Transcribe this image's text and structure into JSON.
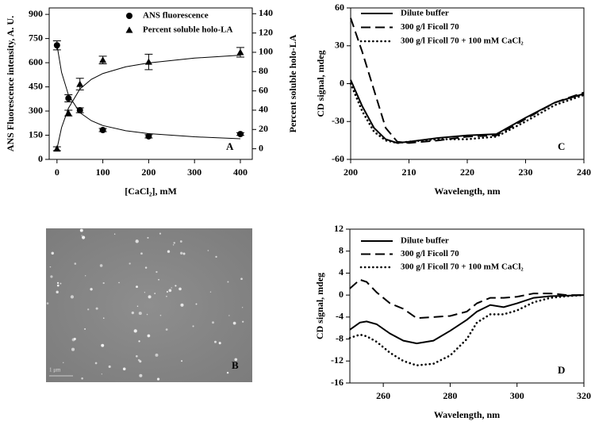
{
  "chart_data": [
    {
      "type": "scatter",
      "annotation": "A",
      "x_label": "[CaCl₂], mM",
      "y_label": "ANS Fluorescence intensity, A. U.",
      "y2_label": "Percent soluble holo-LA",
      "x": [
        0,
        25,
        50,
        100,
        200,
        400
      ],
      "series": [
        {
          "name": "ANS fluorescence",
          "marker": "circle",
          "color": "#000000",
          "axis": "y",
          "values": [
            708,
            379,
            305,
            182,
            143,
            157
          ],
          "errors": [
            28,
            22,
            15,
            10,
            10,
            8
          ]
        },
        {
          "name": "Percent soluble holo-LA",
          "marker": "triangle",
          "color": "#000000",
          "axis": "y2",
          "values": [
            0,
            37,
            67,
            92,
            90,
            100
          ],
          "errors": [
            2,
            3,
            6,
            4,
            8,
            5
          ]
        }
      ],
      "fits": [
        {
          "axis": "y",
          "x": [
            0,
            10,
            25,
            50,
            75,
            100,
            150,
            200,
            300,
            400
          ],
          "values": [
            710,
            540,
            400,
            290,
            240,
            210,
            178,
            160,
            140,
            128
          ]
        },
        {
          "axis": "y2",
          "x": [
            0,
            10,
            25,
            50,
            75,
            100,
            150,
            200,
            300,
            400
          ],
          "values": [
            0,
            22,
            42,
            62,
            72,
            78,
            85,
            89,
            94,
            97
          ]
        }
      ],
      "xlim": [
        -17,
        426
      ],
      "xticks": [
        0,
        100,
        200,
        300,
        400
      ],
      "ylim": [
        0,
        940
      ],
      "yticks": [
        0,
        150,
        300,
        450,
        600,
        750,
        900
      ],
      "y2lim": [
        -11,
        146
      ],
      "y2ticks": [
        0,
        20,
        40,
        60,
        80,
        100,
        120,
        140
      ]
    },
    {
      "type": "line",
      "annotation": "C",
      "x_label": "Wavelength, nm",
      "y_label": "CD signal, mdeg",
      "x": [
        200,
        202,
        204,
        206,
        208,
        210,
        215,
        220,
        225,
        230,
        235,
        240
      ],
      "series": [
        {
          "name": "Dilute buffer",
          "color": "#000000",
          "dash": "solid",
          "values": [
            3,
            -18,
            -35,
            -44,
            -47,
            -46,
            -43,
            -41,
            -40,
            -27,
            -15,
            -8
          ]
        },
        {
          "name": "300 g/l Ficoll 70",
          "color": "#000000",
          "dash": "dashed",
          "values": [
            52,
            25,
            -5,
            -35,
            -46,
            -47,
            -45,
            -42,
            -41,
            -28,
            -15,
            -7
          ]
        },
        {
          "name": "300 g/l Ficoll 70 + 100 mM CaCl₂",
          "color": "#000000",
          "dash": "dotted",
          "values": [
            0,
            -22,
            -38,
            -45,
            -47,
            -46,
            -44,
            -44,
            -42,
            -30,
            -17,
            -9
          ]
        }
      ],
      "xlim": [
        200,
        240
      ],
      "xticks": [
        200,
        210,
        220,
        230,
        240
      ],
      "ylim": [
        -60,
        60
      ],
      "yticks": [
        -60,
        -30,
        0,
        30,
        60
      ]
    },
    {
      "type": "line",
      "annotation": "D",
      "x_label": "Wavelength, nm",
      "y_label": "CD signal, mdeg",
      "x": [
        250,
        253,
        255,
        258,
        262,
        266,
        270,
        275,
        280,
        285,
        288,
        292,
        296,
        300,
        305,
        310,
        315,
        320
      ],
      "series": [
        {
          "name": "Dilute buffer",
          "color": "#000000",
          "dash": "solid",
          "values": [
            -6.3,
            -5,
            -4.8,
            -5.3,
            -7,
            -8.3,
            -8.8,
            -8.3,
            -6.5,
            -4.5,
            -3,
            -1.8,
            -2.2,
            -1.5,
            -0.5,
            -0.2,
            -0.1,
            0
          ]
        },
        {
          "name": "300 g/l Ficoll 70",
          "color": "#000000",
          "dash": "dashed",
          "values": [
            1.2,
            2.8,
            2.4,
            0.5,
            -1.5,
            -2.5,
            -4.2,
            -4,
            -3.8,
            -3,
            -1.5,
            -0.5,
            -0.5,
            -0.3,
            0.3,
            0.3,
            0,
            0
          ]
        },
        {
          "name": "300 g/l Ficoll 70 + 100 mM CaCl₂",
          "color": "#000000",
          "dash": "dotted",
          "values": [
            -7.8,
            -7.2,
            -7.5,
            -8.5,
            -10.5,
            -12,
            -12.8,
            -12.5,
            -11,
            -8,
            -5,
            -3.5,
            -3.5,
            -2.8,
            -1.3,
            -0.5,
            -0.2,
            0
          ]
        }
      ],
      "xlim": [
        250,
        320
      ],
      "xticks": [
        260,
        280,
        300,
        320
      ],
      "ylim": [
        -16,
        12
      ],
      "yticks": [
        -16,
        -12,
        -8,
        -4,
        0,
        4,
        8,
        12
      ]
    }
  ],
  "image": {
    "label": "B",
    "scale_bar": "1 μm"
  }
}
